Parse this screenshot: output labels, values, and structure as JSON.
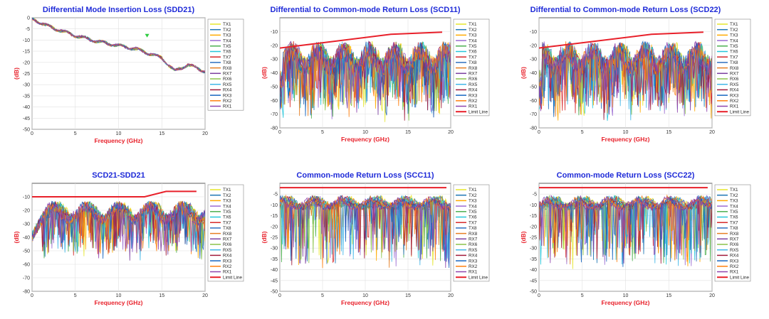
{
  "charts": [
    {
      "title": "Differential Mode Insertion Loss (SDD21)",
      "xlabel": "Frequency (GHz)",
      "ylabel": "(dB)",
      "xlim": [
        0,
        20
      ],
      "ylim": [
        -50,
        0
      ],
      "xticks": [
        "0",
        "5",
        "10",
        "15",
        "20"
      ],
      "yticks": [
        "0",
        "-5",
        "-10",
        "-15",
        "-20",
        "-25",
        "-30",
        "-35",
        "-40",
        "-45",
        "-50"
      ],
      "legend": [
        "TX1",
        "TX2",
        "TX3",
        "TX4",
        "TX5",
        "TX6",
        "TX7",
        "TX8",
        "RX8",
        "RX7",
        "RX6",
        "RX5",
        "RX4",
        "RX3",
        "RX2",
        "RX1"
      ],
      "marker": {
        "x": 13.3,
        "y": -8.2,
        "color": "#2ecc40"
      }
    },
    {
      "title": "Differential to Common-mode Return Loss (SCD11)",
      "xlabel": "Frequency (GHz)",
      "ylabel": "(dB)",
      "xlim": [
        0,
        20
      ],
      "ylim": [
        -80,
        0
      ],
      "xticks": [
        "0",
        "5",
        "10",
        "15",
        "20"
      ],
      "yticks": [
        "-10",
        "-20",
        "-30",
        "-40",
        "-50",
        "-60",
        "-70",
        "-80"
      ],
      "legend": [
        "TX1",
        "TX2",
        "TX3",
        "TX4",
        "TX5",
        "TX6",
        "TX7",
        "TX8",
        "RX8",
        "RX7",
        "RX6",
        "RX5",
        "RX4",
        "RX3",
        "RX2",
        "RX1",
        "Limit Line"
      ],
      "limit_line": {
        "x": [
          0,
          13,
          19
        ],
        "y": [
          -22,
          -12,
          -10.5
        ]
      }
    },
    {
      "title": "Differential to Common-mode Return Loss (SCD22)",
      "xlabel": "Frequency (GHz)",
      "ylabel": "(dB)",
      "xlim": [
        0,
        20
      ],
      "ylim": [
        -80,
        0
      ],
      "xticks": [
        "0",
        "5",
        "10",
        "15",
        "20"
      ],
      "yticks": [
        "-10",
        "-20",
        "-30",
        "-40",
        "-50",
        "-60",
        "-70",
        "-80"
      ],
      "legend": [
        "TX1",
        "TX2",
        "TX3",
        "TX4",
        "TX5",
        "TX6",
        "TX7",
        "TX8",
        "RX8",
        "RX7",
        "RX6",
        "RX5",
        "RX4",
        "RX3",
        "RX2",
        "RX1",
        "Limit Line"
      ],
      "limit_line": {
        "x": [
          0,
          13,
          19
        ],
        "y": [
          -22,
          -12,
          -10.5
        ]
      }
    },
    {
      "title": "SCD21-SDD21",
      "xlabel": "Frequency (GHz)",
      "ylabel": "(dB)",
      "xlim": [
        0,
        20
      ],
      "ylim": [
        -80,
        0
      ],
      "xticks": [
        "0",
        "5",
        "10",
        "15",
        "20"
      ],
      "yticks": [
        "-10",
        "-20",
        "-30",
        "-40",
        "-50",
        "-60",
        "-70",
        "-80"
      ],
      "legend": [
        "TX1",
        "TX2",
        "TX3",
        "TX4",
        "TX5",
        "TX6",
        "TX7",
        "TX8",
        "RX8",
        "RX7",
        "RX6",
        "RX5",
        "RX4",
        "RX3",
        "RX2",
        "RX1",
        "Limit Line"
      ],
      "limit_line": {
        "x": [
          0,
          13,
          15.5,
          19
        ],
        "y": [
          -10,
          -10,
          -6,
          -6
        ]
      }
    },
    {
      "title": "Common-mode Return Loss (SCC11)",
      "xlabel": "Frequency (GHz)",
      "ylabel": "(dB)",
      "xlim": [
        0,
        20
      ],
      "ylim": [
        -50,
        0
      ],
      "xticks": [
        "0",
        "5",
        "10",
        "15",
        "20"
      ],
      "yticks": [
        "-5",
        "-10",
        "-15",
        "-20",
        "-25",
        "-30",
        "-35",
        "-40",
        "-45",
        "-50"
      ],
      "legend": [
        "TX1",
        "TX2",
        "TX3",
        "TX4",
        "TX5",
        "TX6",
        "TX7",
        "TX8",
        "RX8",
        "RX7",
        "RX6",
        "RX5",
        "RX4",
        "RX3",
        "RX2",
        "RX1",
        "Limit Line"
      ],
      "limit_line": {
        "x": [
          0,
          19.5
        ],
        "y": [
          -2,
          -2
        ]
      }
    },
    {
      "title": "Common-mode Return Loss (SCC22)",
      "xlabel": "Frequency (GHz)",
      "ylabel": "(dB)",
      "xlim": [
        0,
        20
      ],
      "ylim": [
        -50,
        0
      ],
      "xticks": [
        "0",
        "5",
        "10",
        "15",
        "20"
      ],
      "yticks": [
        "-5",
        "-10",
        "-15",
        "-20",
        "-25",
        "-30",
        "-35",
        "-40",
        "-45",
        "-50"
      ],
      "legend": [
        "TX1",
        "TX2",
        "TX3",
        "TX4",
        "TX5",
        "TX6",
        "TX7",
        "TX8",
        "RX8",
        "RX7",
        "RX6",
        "RX5",
        "RX4",
        "RX3",
        "RX2",
        "RX1",
        "Limit Line"
      ],
      "limit_line": {
        "x": [
          0,
          19.5
        ],
        "y": [
          -2,
          -2
        ]
      }
    }
  ],
  "series_colors": [
    "#e5e52a",
    "#1f77b4",
    "#ffaa00",
    "#9b6bd1",
    "#4caf50",
    "#26c6da",
    "#d62728",
    "#2e6fbf",
    "#e67e22",
    "#7b3fa0",
    "#8bc34a",
    "#3fb6e8",
    "#a01a3a",
    "#1565c0",
    "#ff7f0e",
    "#8e44ad"
  ],
  "limit_color": "#e8202a",
  "chart_data": [
    {
      "type": "line",
      "title": "Differential Mode Insertion Loss (SDD21)",
      "xlabel": "Frequency (GHz)",
      "ylabel": "(dB)",
      "xlim": [
        0,
        20
      ],
      "ylim": [
        -50,
        0
      ],
      "grid": true,
      "legend_position": "right",
      "series_names": [
        "TX1",
        "TX2",
        "TX3",
        "TX4",
        "TX5",
        "TX6",
        "TX7",
        "TX8",
        "RX8",
        "RX7",
        "RX6",
        "RX5",
        "RX4",
        "RX3",
        "RX2",
        "RX1"
      ],
      "approx_trend": {
        "x": [
          0,
          2,
          5,
          8,
          12,
          15,
          16.5,
          18,
          20
        ],
        "y": [
          -0.5,
          -4,
          -8,
          -11,
          -14,
          -18,
          -24,
          -21,
          -24
        ]
      }
    },
    {
      "type": "line",
      "title": "Differential to Common-mode Return Loss (SCD11)",
      "xlabel": "Frequency (GHz)",
      "ylabel": "(dB)",
      "xlim": [
        0,
        20
      ],
      "ylim": [
        -80,
        0
      ],
      "grid": true,
      "legend_position": "right",
      "series_names": [
        "TX1",
        "TX2",
        "TX3",
        "TX4",
        "TX5",
        "TX6",
        "TX7",
        "TX8",
        "RX8",
        "RX7",
        "RX6",
        "RX5",
        "RX4",
        "RX3",
        "RX2",
        "RX1"
      ],
      "limit_line": {
        "x": [
          0,
          13,
          19
        ],
        "y": [
          -22,
          -12,
          -10.5
        ]
      },
      "approx_range": {
        "upper": -20,
        "lower": -65
      }
    },
    {
      "type": "line",
      "title": "Differential to Common-mode Return Loss (SCD22)",
      "xlabel": "Frequency (GHz)",
      "ylabel": "(dB)",
      "xlim": [
        0,
        20
      ],
      "ylim": [
        -80,
        0
      ],
      "grid": true,
      "legend_position": "right",
      "series_names": [
        "TX1",
        "TX2",
        "TX3",
        "TX4",
        "TX5",
        "TX6",
        "TX7",
        "TX8",
        "RX8",
        "RX7",
        "RX6",
        "RX5",
        "RX4",
        "RX3",
        "RX2",
        "RX1"
      ],
      "limit_line": {
        "x": [
          0,
          13,
          19
        ],
        "y": [
          -22,
          -12,
          -10.5
        ]
      },
      "approx_range": {
        "upper": -20,
        "lower": -65
      }
    },
    {
      "type": "line",
      "title": "SCD21-SDD21",
      "xlabel": "Frequency (GHz)",
      "ylabel": "(dB)",
      "xlim": [
        0,
        20
      ],
      "ylim": [
        -80,
        0
      ],
      "grid": true,
      "legend_position": "right",
      "series_names": [
        "TX1",
        "TX2",
        "TX3",
        "TX4",
        "TX5",
        "TX6",
        "TX7",
        "TX8",
        "RX8",
        "RX7",
        "RX6",
        "RX5",
        "RX4",
        "RX3",
        "RX2",
        "RX1"
      ],
      "limit_line": {
        "x": [
          0,
          13,
          15.5,
          19
        ],
        "y": [
          -10,
          -10,
          -6,
          -6
        ]
      },
      "approx_range": {
        "upper": -12,
        "lower": -50
      }
    },
    {
      "type": "line",
      "title": "Common-mode Return Loss (SCC11)",
      "xlabel": "Frequency (GHz)",
      "ylabel": "(dB)",
      "xlim": [
        0,
        20
      ],
      "ylim": [
        -50,
        0
      ],
      "grid": true,
      "legend_position": "right",
      "series_names": [
        "TX1",
        "TX2",
        "TX3",
        "TX4",
        "TX5",
        "TX6",
        "TX7",
        "TX8",
        "RX8",
        "RX7",
        "RX6",
        "RX5",
        "RX4",
        "RX3",
        "RX2",
        "RX1"
      ],
      "limit_line": {
        "x": [
          0,
          19.5
        ],
        "y": [
          -2,
          -2
        ]
      },
      "approx_range": {
        "upper": -4,
        "lower": -35
      }
    },
    {
      "type": "line",
      "title": "Common-mode Return Loss (SCC22)",
      "xlabel": "Frequency (GHz)",
      "ylabel": "(dB)",
      "xlim": [
        0,
        20
      ],
      "ylim": [
        -50,
        0
      ],
      "grid": true,
      "legend_position": "right",
      "series_names": [
        "TX1",
        "TX2",
        "TX3",
        "TX4",
        "TX5",
        "TX6",
        "TX7",
        "TX8",
        "RX8",
        "RX7",
        "RX6",
        "RX5",
        "RX4",
        "RX3",
        "RX2",
        "RX1"
      ],
      "limit_line": {
        "x": [
          0,
          19.5
        ],
        "y": [
          -2,
          -2
        ]
      },
      "approx_range": {
        "upper": -4,
        "lower": -35
      }
    }
  ]
}
